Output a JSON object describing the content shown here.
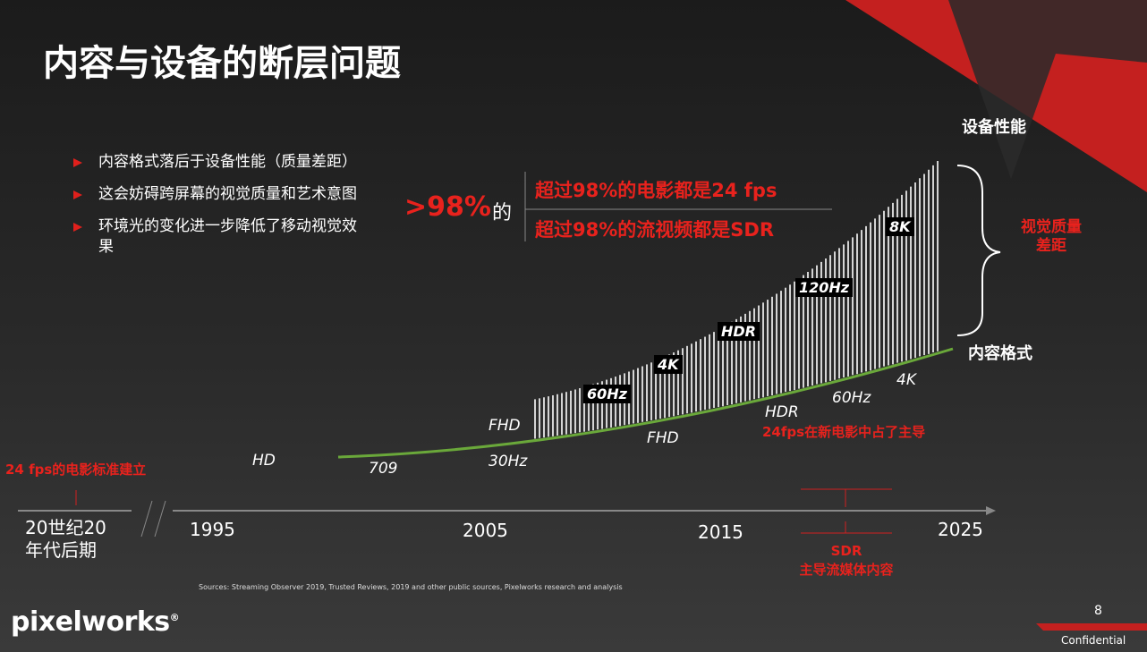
{
  "title": "内容与设备的断层问题",
  "bullets": [
    "内容格式落后于设备性能（质量差距）",
    "这会妨碍跨屏幕的视觉质量和艺术意图",
    "环境光的变化进一步降低了移动视觉效果"
  ],
  "callout": {
    "percent": ">98%",
    "particle": "的",
    "lines": [
      "超过98%的电影都是24 fps",
      "超过98%的流视频都是SDR"
    ]
  },
  "device_axis_label": "设备性能",
  "content_axis_label": "内容格式",
  "gap_label": "视觉质量差距",
  "device_tags": [
    "60Hz",
    "4K",
    "HDR",
    "120Hz",
    "8K"
  ],
  "content_tags": [
    "HD",
    "709",
    "FHD",
    "30Hz",
    "FHD",
    "HDR",
    "60Hz",
    "4K"
  ],
  "content_note": "24fps在新电影中占了主导",
  "timeline": {
    "origin_note": "24 fps的电影标准建立",
    "origin": "20世纪20年代后期",
    "years": [
      "1995",
      "2005",
      "2015",
      "2025"
    ],
    "sdr_note": [
      "SDR",
      "主导流媒体内容"
    ]
  },
  "sources": "Sources: Streaming Observer 2019, Trusted Reviews, 2019 and other public sources, Pixelworks research and analysis",
  "logo": "pixelworks",
  "page_number": "8",
  "footer": "Confidential"
}
